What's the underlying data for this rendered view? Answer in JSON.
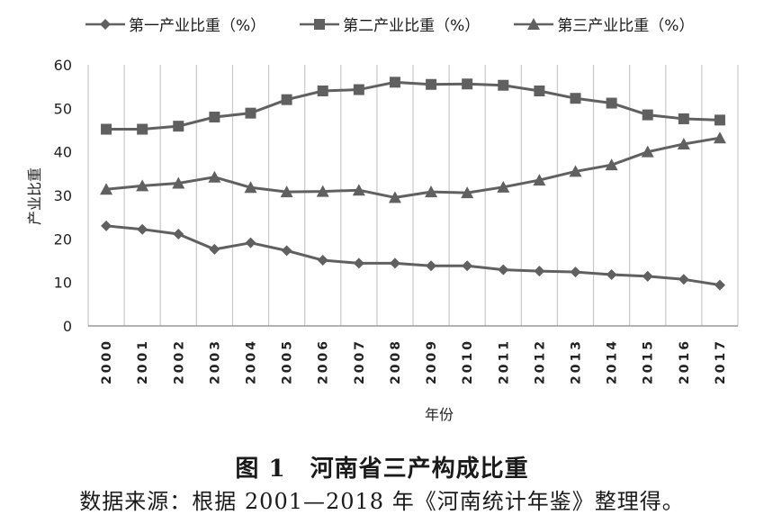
{
  "chart_data": {
    "type": "line",
    "xlabel": "年份",
    "ylabel": "产业比重",
    "ylim": [
      0,
      60
    ],
    "yticks": [
      0,
      10,
      20,
      30,
      40,
      50,
      60
    ],
    "grid": "vertical",
    "legend_position": "top",
    "categories": [
      "2000",
      "2001",
      "2002",
      "2003",
      "2004",
      "2005",
      "2006",
      "2007",
      "2008",
      "2009",
      "2010",
      "2011",
      "2012",
      "2013",
      "2014",
      "2015",
      "2016",
      "2017"
    ],
    "series": [
      {
        "name": "第一产业比重（%）",
        "marker": "diamond",
        "color": "#606060",
        "values": [
          23.0,
          22.2,
          21.1,
          17.6,
          19.1,
          17.3,
          15.1,
          14.4,
          14.4,
          13.8,
          13.8,
          12.9,
          12.6,
          12.4,
          11.8,
          11.4,
          10.7,
          9.4
        ]
      },
      {
        "name": "第二产业比重（%）",
        "marker": "square",
        "color": "#606060",
        "values": [
          45.2,
          45.2,
          45.9,
          48.0,
          48.9,
          52.0,
          54.0,
          54.3,
          56.0,
          55.5,
          55.6,
          55.3,
          54.0,
          52.3,
          51.2,
          48.5,
          47.6,
          47.3
        ]
      },
      {
        "name": "第三产业比重（%）",
        "marker": "triangle",
        "color": "#606060",
        "values": [
          31.4,
          32.2,
          32.8,
          34.2,
          31.8,
          30.8,
          30.9,
          31.2,
          29.5,
          30.8,
          30.6,
          31.9,
          33.5,
          35.5,
          37.0,
          40.0,
          41.8,
          43.2
        ]
      }
    ]
  },
  "figure": {
    "title": "图 1　河南省三产构成比重",
    "source": "数据来源：根据 2001—2018 年《河南统计年鉴》整理得。"
  }
}
